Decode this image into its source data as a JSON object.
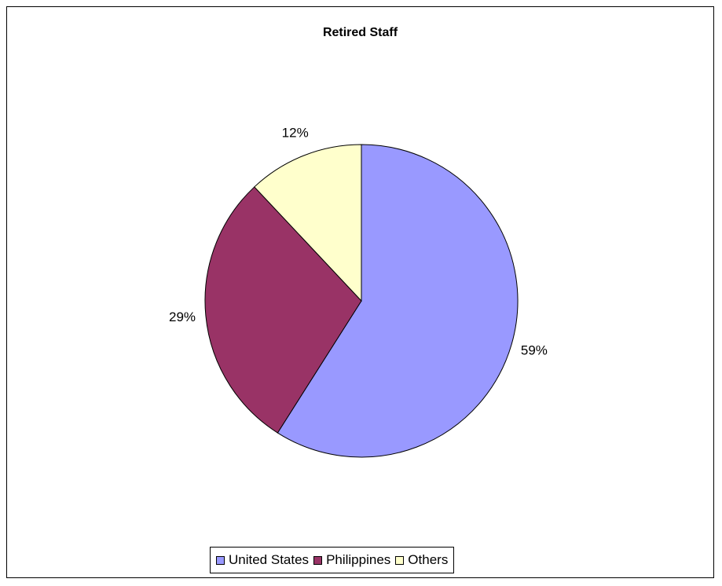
{
  "chart_data": {
    "type": "pie",
    "title": "Retired Staff",
    "categories": [
      "United States",
      "Philippines",
      "Others"
    ],
    "values": [
      59,
      29,
      12
    ],
    "value_labels": [
      "59%",
      "29%",
      "12%"
    ],
    "colors": [
      "#9999FF",
      "#993366",
      "#FFFFCC"
    ],
    "legend_position": "bottom"
  }
}
